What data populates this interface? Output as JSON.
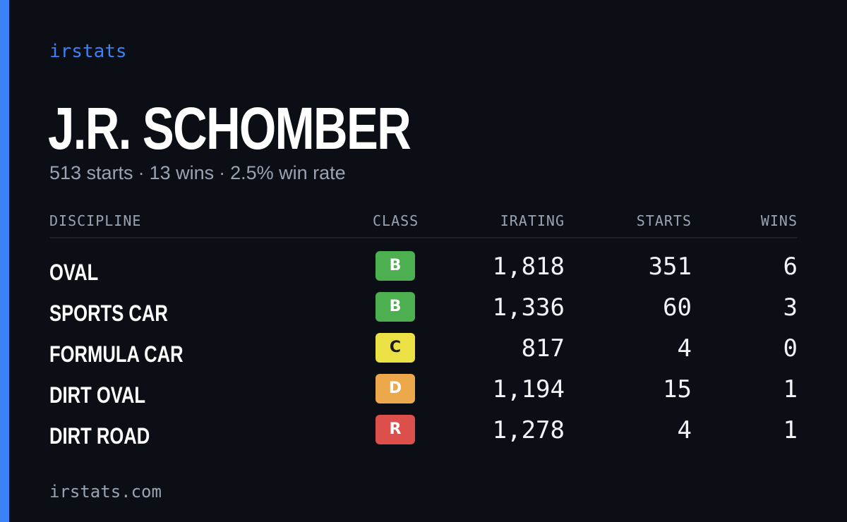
{
  "brand": "irstats",
  "driver": {
    "name": "J.R. SCHOMBER",
    "starts_text": "513 starts",
    "wins_text": "13 wins",
    "win_rate_text": "2.5% win rate",
    "separator": "·"
  },
  "table": {
    "headers": {
      "discipline": "DISCIPLINE",
      "class": "CLASS",
      "irating": "IRATING",
      "starts": "STARTS",
      "wins": "WINS"
    },
    "rows": [
      {
        "discipline": "OVAL",
        "class": "B",
        "class_color": "#4cb050",
        "class_text_color": "#ffffff",
        "irating": "1,818",
        "starts": "351",
        "wins": "6"
      },
      {
        "discipline": "SPORTS CAR",
        "class": "B",
        "class_color": "#4cb050",
        "class_text_color": "#ffffff",
        "irating": "1,336",
        "starts": "60",
        "wins": "3"
      },
      {
        "discipline": "FORMULA CAR",
        "class": "C",
        "class_color": "#ebe144",
        "class_text_color": "#1a1a1a",
        "irating": "817",
        "starts": "4",
        "wins": "0"
      },
      {
        "discipline": "DIRT OVAL",
        "class": "D",
        "class_color": "#eca84a",
        "class_text_color": "#ffffff",
        "irating": "1,194",
        "starts": "15",
        "wins": "1"
      },
      {
        "discipline": "DIRT ROAD",
        "class": "R",
        "class_color": "#dc4f4a",
        "class_text_color": "#ffffff",
        "irating": "1,278",
        "starts": "4",
        "wins": "1"
      }
    ]
  },
  "footer": {
    "url": "irstats.com"
  },
  "colors": {
    "background": "#0b0e15",
    "accent": "#3b82f6",
    "muted_text": "#9aa3b2"
  }
}
